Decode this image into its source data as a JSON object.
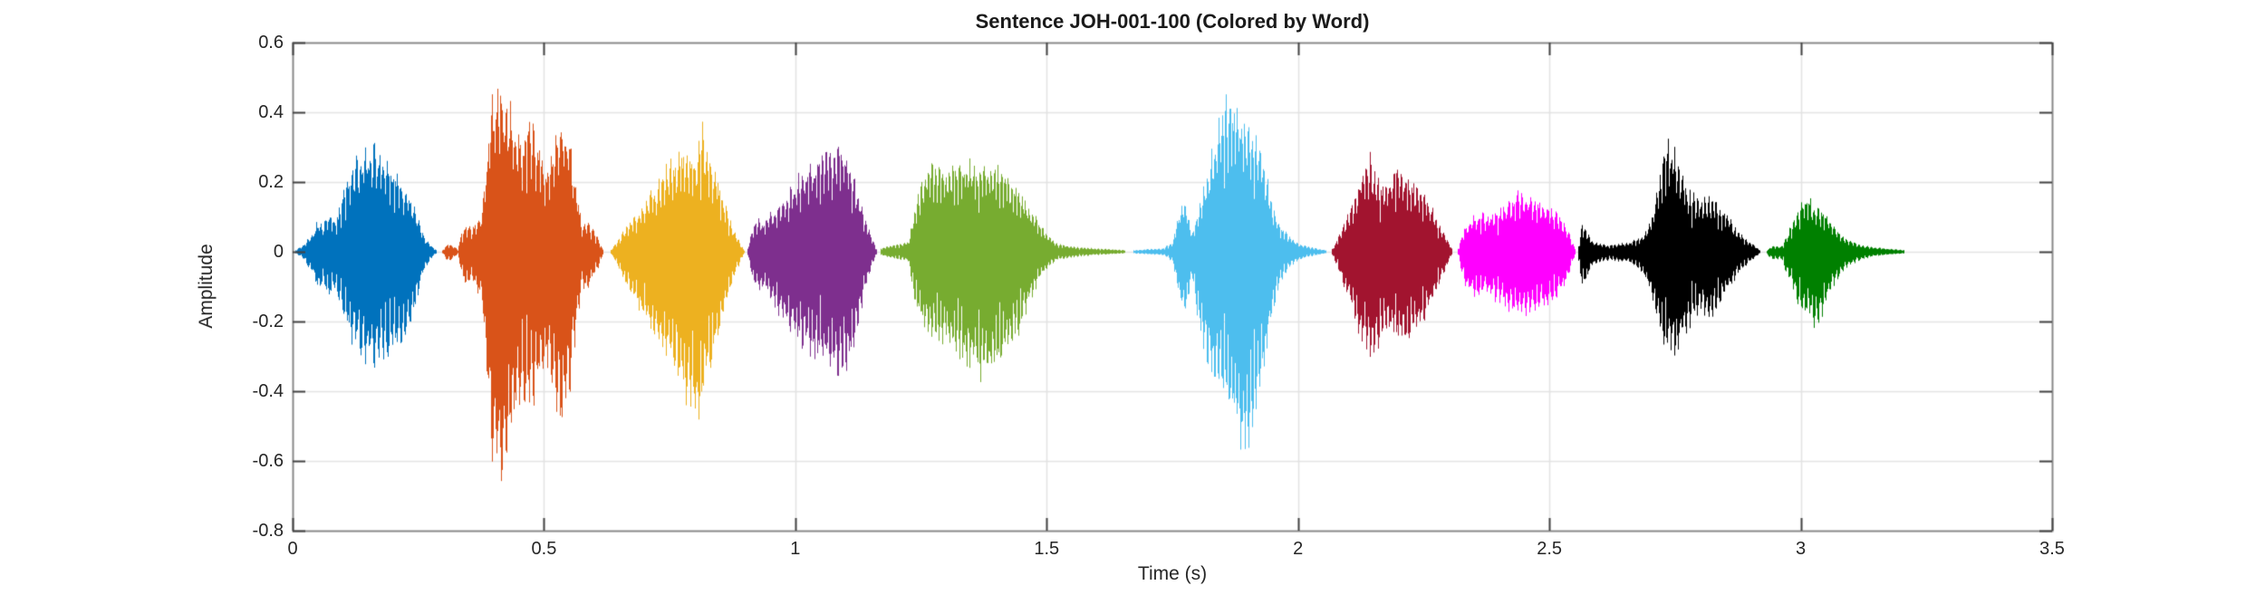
{
  "figure": {
    "background_color": "#ffffff",
    "axis_line_color": "#8a8a8a",
    "tick_mark_color": "#444444",
    "grid_color": "#e4e4e4",
    "text_color": "#262626"
  },
  "chart_data": {
    "type": "line",
    "subtype": "audio-waveform-colored-by-word",
    "title": "Sentence JOH-001-100 (Colored by Word)",
    "xlabel": "Time (s)",
    "ylabel": "Amplitude",
    "xlim": [
      0,
      3.5
    ],
    "ylim": [
      -0.8,
      0.6
    ],
    "xtick_values": [
      0,
      0.5,
      1,
      1.5,
      2,
      2.5,
      3,
      3.5
    ],
    "xtick_labels": [
      "0",
      "0.5",
      "1",
      "1.5",
      "2",
      "2.5",
      "3",
      "3.5"
    ],
    "ytick_values": [
      -0.8,
      -0.6,
      -0.4,
      -0.2,
      0,
      0.2,
      0.4,
      0.6
    ],
    "ytick_labels": [
      "-0.8",
      "-0.6",
      "-0.4",
      "-0.2",
      "0",
      "0.2",
      "0.4",
      "0.6"
    ],
    "grid": true,
    "legend": "none",
    "series_note": "each segment is one word of the sentence; envelope points are [time_s, pos_peak, neg_peak_magnitude]",
    "segments": [
      {
        "word_index": 1,
        "color": "#0072BD",
        "envelope": [
          [
            0.005,
            0.005,
            0.005
          ],
          [
            0.02,
            0.02,
            0.02
          ],
          [
            0.04,
            0.06,
            0.07
          ],
          [
            0.05,
            0.1,
            0.12
          ],
          [
            0.06,
            0.08,
            0.09
          ],
          [
            0.07,
            0.13,
            0.14
          ],
          [
            0.08,
            0.1,
            0.12
          ],
          [
            0.09,
            0.12,
            0.14
          ],
          [
            0.1,
            0.18,
            0.2
          ],
          [
            0.12,
            0.27,
            0.28
          ],
          [
            0.14,
            0.31,
            0.32
          ],
          [
            0.16,
            0.33,
            0.35
          ],
          [
            0.18,
            0.3,
            0.33
          ],
          [
            0.2,
            0.26,
            0.31
          ],
          [
            0.215,
            0.22,
            0.28
          ],
          [
            0.23,
            0.18,
            0.25
          ],
          [
            0.245,
            0.12,
            0.16
          ],
          [
            0.26,
            0.05,
            0.06
          ],
          [
            0.275,
            0.02,
            0.02
          ],
          [
            0.285,
            0.005,
            0.005
          ]
        ]
      },
      {
        "word_index": 2,
        "color": "#D95319",
        "envelope": [
          [
            0.298,
            0.005,
            0.005
          ],
          [
            0.308,
            0.025,
            0.03
          ],
          [
            0.318,
            0.02,
            0.02
          ],
          [
            0.328,
            0.008,
            0.008
          ],
          [
            0.335,
            0.06,
            0.07
          ],
          [
            0.345,
            0.09,
            0.11
          ],
          [
            0.355,
            0.07,
            0.08
          ],
          [
            0.365,
            0.1,
            0.12
          ],
          [
            0.375,
            0.12,
            0.14
          ],
          [
            0.385,
            0.3,
            0.4
          ],
          [
            0.395,
            0.46,
            0.6
          ],
          [
            0.405,
            0.5,
            0.68
          ],
          [
            0.415,
            0.48,
            0.7
          ],
          [
            0.425,
            0.46,
            0.65
          ],
          [
            0.435,
            0.44,
            0.55
          ],
          [
            0.445,
            0.4,
            0.48
          ],
          [
            0.455,
            0.35,
            0.42
          ],
          [
            0.465,
            0.38,
            0.45
          ],
          [
            0.475,
            0.42,
            0.48
          ],
          [
            0.485,
            0.36,
            0.44
          ],
          [
            0.495,
            0.3,
            0.38
          ],
          [
            0.505,
            0.25,
            0.34
          ],
          [
            0.515,
            0.3,
            0.4
          ],
          [
            0.525,
            0.38,
            0.48
          ],
          [
            0.535,
            0.41,
            0.52
          ],
          [
            0.545,
            0.38,
            0.47
          ],
          [
            0.555,
            0.3,
            0.38
          ],
          [
            0.565,
            0.18,
            0.22
          ],
          [
            0.575,
            0.08,
            0.1
          ],
          [
            0.585,
            0.1,
            0.12
          ],
          [
            0.595,
            0.07,
            0.08
          ],
          [
            0.605,
            0.05,
            0.06
          ],
          [
            0.617,
            0.005,
            0.005
          ]
        ]
      },
      {
        "word_index": 3,
        "color": "#EDB120",
        "envelope": [
          [
            0.632,
            0.005,
            0.005
          ],
          [
            0.645,
            0.03,
            0.04
          ],
          [
            0.66,
            0.07,
            0.09
          ],
          [
            0.675,
            0.1,
            0.14
          ],
          [
            0.69,
            0.13,
            0.18
          ],
          [
            0.705,
            0.17,
            0.22
          ],
          [
            0.72,
            0.2,
            0.26
          ],
          [
            0.735,
            0.24,
            0.3
          ],
          [
            0.75,
            0.27,
            0.34
          ],
          [
            0.765,
            0.29,
            0.38
          ],
          [
            0.78,
            0.3,
            0.44
          ],
          [
            0.795,
            0.28,
            0.5
          ],
          [
            0.805,
            0.33,
            0.53
          ],
          [
            0.815,
            0.38,
            0.45
          ],
          [
            0.825,
            0.3,
            0.38
          ],
          [
            0.84,
            0.24,
            0.3
          ],
          [
            0.855,
            0.17,
            0.22
          ],
          [
            0.87,
            0.1,
            0.12
          ],
          [
            0.885,
            0.04,
            0.05
          ],
          [
            0.897,
            0.005,
            0.005
          ]
        ]
      },
      {
        "word_index": 4,
        "color": "#7E2F8E",
        "envelope": [
          [
            0.905,
            0.01,
            0.01
          ],
          [
            0.915,
            0.08,
            0.09
          ],
          [
            0.925,
            0.1,
            0.12
          ],
          [
            0.935,
            0.09,
            0.11
          ],
          [
            0.945,
            0.11,
            0.13
          ],
          [
            0.955,
            0.13,
            0.16
          ],
          [
            0.97,
            0.15,
            0.2
          ],
          [
            0.985,
            0.18,
            0.24
          ],
          [
            1.0,
            0.22,
            0.27
          ],
          [
            1.015,
            0.24,
            0.29
          ],
          [
            1.03,
            0.26,
            0.31
          ],
          [
            1.045,
            0.28,
            0.33
          ],
          [
            1.06,
            0.3,
            0.35
          ],
          [
            1.075,
            0.32,
            0.37
          ],
          [
            1.09,
            0.33,
            0.37
          ],
          [
            1.105,
            0.3,
            0.35
          ],
          [
            1.12,
            0.22,
            0.26
          ],
          [
            1.135,
            0.12,
            0.14
          ],
          [
            1.15,
            0.05,
            0.05
          ],
          [
            1.16,
            0.01,
            0.01
          ]
        ]
      },
      {
        "word_index": 5,
        "color": "#77AC30",
        "envelope": [
          [
            1.17,
            0.01,
            0.01
          ],
          [
            1.19,
            0.02,
            0.02
          ],
          [
            1.21,
            0.025,
            0.025
          ],
          [
            1.225,
            0.03,
            0.03
          ],
          [
            1.235,
            0.12,
            0.14
          ],
          [
            1.25,
            0.22,
            0.22
          ],
          [
            1.265,
            0.26,
            0.24
          ],
          [
            1.28,
            0.28,
            0.26
          ],
          [
            1.3,
            0.25,
            0.28
          ],
          [
            1.32,
            0.27,
            0.3
          ],
          [
            1.34,
            0.28,
            0.34
          ],
          [
            1.36,
            0.26,
            0.38
          ],
          [
            1.38,
            0.27,
            0.4
          ],
          [
            1.4,
            0.26,
            0.36
          ],
          [
            1.42,
            0.24,
            0.3
          ],
          [
            1.44,
            0.2,
            0.26
          ],
          [
            1.46,
            0.15,
            0.18
          ],
          [
            1.48,
            0.1,
            0.1
          ],
          [
            1.5,
            0.05,
            0.05
          ],
          [
            1.52,
            0.025,
            0.025
          ],
          [
            1.56,
            0.015,
            0.015
          ],
          [
            1.6,
            0.01,
            0.01
          ],
          [
            1.655,
            0.005,
            0.005
          ]
        ]
      },
      {
        "word_index": 6,
        "color": "#4DBEEE",
        "envelope": [
          [
            1.672,
            0.005,
            0.005
          ],
          [
            1.7,
            0.008,
            0.008
          ],
          [
            1.73,
            0.01,
            0.01
          ],
          [
            1.75,
            0.03,
            0.03
          ],
          [
            1.762,
            0.12,
            0.13
          ],
          [
            1.775,
            0.17,
            0.19
          ],
          [
            1.788,
            0.06,
            0.08
          ],
          [
            1.8,
            0.13,
            0.22
          ],
          [
            1.815,
            0.22,
            0.32
          ],
          [
            1.83,
            0.32,
            0.38
          ],
          [
            1.845,
            0.44,
            0.42
          ],
          [
            1.86,
            0.47,
            0.48
          ],
          [
            1.875,
            0.44,
            0.55
          ],
          [
            1.89,
            0.42,
            0.62
          ],
          [
            1.905,
            0.38,
            0.55
          ],
          [
            1.92,
            0.33,
            0.45
          ],
          [
            1.935,
            0.25,
            0.32
          ],
          [
            1.95,
            0.14,
            0.18
          ],
          [
            1.965,
            0.08,
            0.09
          ],
          [
            1.98,
            0.05,
            0.05
          ],
          [
            2.0,
            0.025,
            0.025
          ],
          [
            2.03,
            0.012,
            0.012
          ],
          [
            2.055,
            0.005,
            0.005
          ]
        ]
      },
      {
        "word_index": 7,
        "color": "#A2142F",
        "envelope": [
          [
            2.068,
            0.01,
            0.01
          ],
          [
            2.08,
            0.05,
            0.06
          ],
          [
            2.095,
            0.1,
            0.13
          ],
          [
            2.11,
            0.16,
            0.2
          ],
          [
            2.125,
            0.24,
            0.27
          ],
          [
            2.14,
            0.3,
            0.33
          ],
          [
            2.15,
            0.26,
            0.35
          ],
          [
            2.165,
            0.2,
            0.26
          ],
          [
            2.18,
            0.22,
            0.24
          ],
          [
            2.195,
            0.26,
            0.27
          ],
          [
            2.21,
            0.24,
            0.29
          ],
          [
            2.225,
            0.22,
            0.27
          ],
          [
            2.24,
            0.2,
            0.24
          ],
          [
            2.255,
            0.17,
            0.2
          ],
          [
            2.27,
            0.12,
            0.15
          ],
          [
            2.285,
            0.07,
            0.08
          ],
          [
            2.305,
            0.01,
            0.01
          ]
        ]
      },
      {
        "word_index": 8,
        "color": "#FF00FF",
        "envelope": [
          [
            2.318,
            0.01,
            0.01
          ],
          [
            2.33,
            0.08,
            0.1
          ],
          [
            2.345,
            0.11,
            0.13
          ],
          [
            2.36,
            0.12,
            0.14
          ],
          [
            2.375,
            0.11,
            0.13
          ],
          [
            2.39,
            0.12,
            0.15
          ],
          [
            2.405,
            0.14,
            0.16
          ],
          [
            2.42,
            0.16,
            0.18
          ],
          [
            2.435,
            0.18,
            0.19
          ],
          [
            2.45,
            0.19,
            0.2
          ],
          [
            2.465,
            0.17,
            0.19
          ],
          [
            2.48,
            0.15,
            0.18
          ],
          [
            2.495,
            0.14,
            0.17
          ],
          [
            2.51,
            0.13,
            0.15
          ],
          [
            2.525,
            0.1,
            0.12
          ],
          [
            2.54,
            0.05,
            0.06
          ],
          [
            2.55,
            0.01,
            0.01
          ]
        ]
      },
      {
        "word_index": 9,
        "color": "#000000",
        "envelope": [
          [
            2.558,
            0.02,
            0.03
          ],
          [
            2.565,
            0.09,
            0.12
          ],
          [
            2.575,
            0.06,
            0.08
          ],
          [
            2.585,
            0.03,
            0.04
          ],
          [
            2.6,
            0.025,
            0.03
          ],
          [
            2.62,
            0.02,
            0.025
          ],
          [
            2.64,
            0.025,
            0.03
          ],
          [
            2.66,
            0.03,
            0.035
          ],
          [
            2.675,
            0.04,
            0.05
          ],
          [
            2.69,
            0.06,
            0.08
          ],
          [
            2.705,
            0.12,
            0.15
          ],
          [
            2.72,
            0.25,
            0.25
          ],
          [
            2.735,
            0.36,
            0.3
          ],
          [
            2.75,
            0.3,
            0.32
          ],
          [
            2.765,
            0.22,
            0.28
          ],
          [
            2.78,
            0.18,
            0.22
          ],
          [
            2.795,
            0.16,
            0.18
          ],
          [
            2.81,
            0.17,
            0.2
          ],
          [
            2.825,
            0.16,
            0.19
          ],
          [
            2.84,
            0.14,
            0.16
          ],
          [
            2.855,
            0.11,
            0.12
          ],
          [
            2.87,
            0.07,
            0.08
          ],
          [
            2.885,
            0.05,
            0.05
          ],
          [
            2.9,
            0.03,
            0.03
          ],
          [
            2.918,
            0.005,
            0.005
          ]
        ]
      },
      {
        "word_index": 10,
        "color": "#008000",
        "envelope": [
          [
            2.932,
            0.005,
            0.01
          ],
          [
            2.94,
            0.015,
            0.02
          ],
          [
            2.95,
            0.02,
            0.025
          ],
          [
            2.96,
            0.015,
            0.02
          ],
          [
            2.97,
            0.04,
            0.06
          ],
          [
            2.98,
            0.08,
            0.1
          ],
          [
            2.99,
            0.12,
            0.14
          ],
          [
            3.0,
            0.15,
            0.17
          ],
          [
            3.01,
            0.17,
            0.19
          ],
          [
            3.02,
            0.16,
            0.21
          ],
          [
            3.03,
            0.14,
            0.24
          ],
          [
            3.045,
            0.12,
            0.18
          ],
          [
            3.06,
            0.09,
            0.12
          ],
          [
            3.075,
            0.06,
            0.08
          ],
          [
            3.09,
            0.04,
            0.05
          ],
          [
            3.11,
            0.025,
            0.03
          ],
          [
            3.14,
            0.015,
            0.015
          ],
          [
            3.17,
            0.01,
            0.01
          ],
          [
            3.205,
            0.005,
            0.005
          ]
        ]
      }
    ]
  }
}
